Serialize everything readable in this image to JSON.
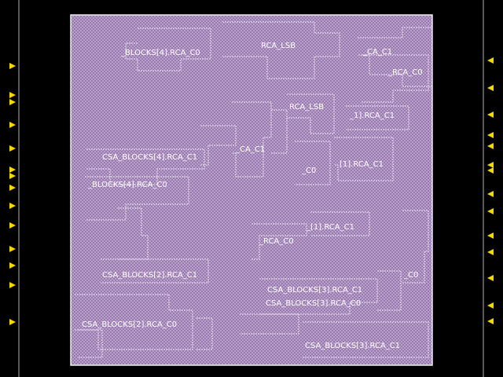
{
  "colors": {
    "background": "#000000",
    "core_fill": "#9a7bb0",
    "core_checker": "#b9a0cb",
    "core_border": "#f0f0f0",
    "block_outline": "#e8e0f0",
    "pin": "#f5d800",
    "edge_line": "#b0b0b0",
    "label": "#ffffff"
  },
  "labels": [
    "_BLOCKS[4].RCA_C0",
    "RCA_LSB",
    "_CA_C1",
    "_RCA_C0",
    "RCA_LSB",
    "_1].RCA_C1",
    "CSA_BLOCKS[4].RCA_C1",
    "_CA_C1",
    "_C0",
    "[1].RCA_C1",
    "_BLOCKS[4].RCA_C0",
    "_[1].RCA_C1",
    "_RCA_C0",
    "CSA_BLOCKS[2].RCA_C1",
    "_C0",
    "CSA_BLOCKS[3].RCA_C1",
    "CSA_BLOCKS[3].RCA_C0",
    "CSA_BLOCKS[2].RCA_C0",
    "CSA_BLOCKS[3].RCA_C1"
  ],
  "pins": {
    "left_count": 14,
    "right_count": 14
  }
}
